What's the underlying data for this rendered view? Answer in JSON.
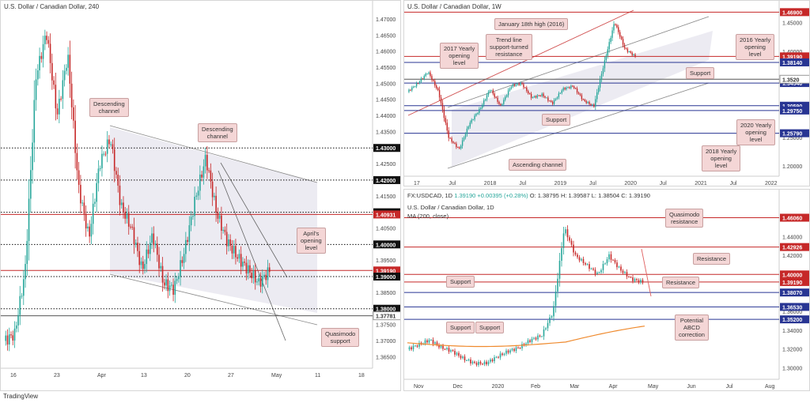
{
  "brand": "TradingView",
  "chart_data": [
    {
      "id": "h4",
      "type": "candlestick",
      "title": "U.S. Dollar / Canadian Dollar, 240",
      "x_ticks": [
        "16",
        "23",
        "Apr",
        "13",
        "20",
        "27",
        "May",
        "11",
        "18"
      ],
      "y_ticks": [
        "1.47000",
        "1.46500",
        "1.46000",
        "1.45500",
        "1.45000",
        "1.44500",
        "1.44000",
        "1.43500",
        "1.43000",
        "1.42500",
        "1.42000",
        "1.41500",
        "1.41000",
        "1.40500",
        "1.40000",
        "1.39500",
        "1.39000",
        "1.38500",
        "1.38000",
        "1.37500",
        "1.37000",
        "1.36500"
      ],
      "ylim": [
        1.3615,
        1.4733
      ],
      "levels": [
        {
          "value": "1.43000",
          "style": "dotted",
          "tag": "black"
        },
        {
          "value": "1.42000",
          "style": "dotted",
          "tag": "black"
        },
        {
          "value": "1.41000",
          "style": "dotted",
          "tag": "black"
        },
        {
          "value": "1.40931",
          "style": "solid-red",
          "tag": "red"
        },
        {
          "value": "1.40000",
          "style": "dotted",
          "tag": "black"
        },
        {
          "value": "1.39190",
          "style": "solid-red",
          "tag": "red"
        },
        {
          "value": "1.39000",
          "style": "dotted",
          "tag": "black"
        },
        {
          "value": "1.38000",
          "style": "dotted",
          "tag": "black"
        },
        {
          "value": "1.37781",
          "style": "solid-black",
          "tag": "grey"
        }
      ],
      "annotations": [
        "Descending channel",
        "Descending channel",
        "April's opening level",
        "Quasimodo support"
      ]
    },
    {
      "id": "w1",
      "type": "candlestick",
      "title": "U.S. Dollar / Canadian Dollar, 1W",
      "x_ticks": [
        "17",
        "Jul",
        "2018",
        "Jul",
        "2019",
        "Jul",
        "2020",
        "Jul",
        "2021",
        "Jul",
        "2022"
      ],
      "y_ticks": [
        "1.45000",
        "1.40000",
        "1.35000",
        "1.30000",
        "1.25000",
        "1.20000"
      ],
      "ylim": [
        1.183,
        1.475
      ],
      "levels": [
        {
          "value": "1.46900",
          "style": "solid-red",
          "tag": "red"
        },
        {
          "value": "1.39190",
          "style": "solid-red",
          "tag": "red"
        },
        {
          "value": "1.38140",
          "style": "solid-blue",
          "tag": "blue"
        },
        {
          "value": "1.34540",
          "style": "solid-blue",
          "tag": "blue"
        },
        {
          "value": "1.30590",
          "style": "solid-blue",
          "tag": "blue"
        },
        {
          "value": "1.29750",
          "style": "solid-blue",
          "tag": "blue"
        },
        {
          "value": "1.25790",
          "style": "solid-blue",
          "tag": "blue"
        },
        {
          "value": "1.3520",
          "style": "solid-black",
          "tag": "grey"
        }
      ],
      "annotations": [
        "January 18th high (2016)",
        "Trend line support-turned resistance",
        "2017 Yearly opening level",
        "2016 Yearly opening level",
        "Support",
        "Support",
        "2020 Yearly opening level",
        "2018 Yearly opening level",
        "Ascending channel"
      ]
    },
    {
      "id": "d1",
      "type": "candlestick",
      "title": "U.S. Dollar / Canadian Dollar, 1D",
      "x_ticks": [
        "Nov",
        "Dec",
        "2020",
        "Feb",
        "Mar",
        "Apr",
        "May",
        "Jun",
        "Jul",
        "Aug"
      ],
      "y_ticks": [
        "1.46000",
        "1.44000",
        "1.42000",
        "1.40000",
        "1.38000",
        "1.36000",
        "1.34000",
        "1.32000",
        "1.30000"
      ],
      "ylim": [
        1.288,
        1.472
      ],
      "levels": [
        {
          "value": "1.46060",
          "style": "solid-red",
          "tag": "red"
        },
        {
          "value": "1.42926",
          "style": "solid-red",
          "tag": "red"
        },
        {
          "value": "1.40000",
          "style": "solid-red",
          "tag": "red"
        },
        {
          "value": "1.39190",
          "style": "solid-red",
          "tag": "red"
        },
        {
          "value": "1.38070",
          "style": "solid-blue",
          "tag": "blue"
        },
        {
          "value": "1.36530",
          "style": "solid-blue",
          "tag": "blue"
        },
        {
          "value": "1.35200",
          "style": "solid-blue",
          "tag": "blue"
        }
      ],
      "annotations": [
        "Quasimodo resistance",
        "Resistance",
        "Resistance",
        "Support",
        "Support",
        "Support",
        "Potential ABCD correction"
      ]
    }
  ],
  "w1_ohlc": {
    "symbol": "FX:USDCAD, 1D",
    "price": "1.39190",
    "change": "+0.00395 (+0.28%)",
    "o": "O: 1.38795",
    "h": "H: 1.39587",
    "l": "L: 1.38504",
    "c": "C: 1.39190"
  },
  "d1_ma": "MA (200, close)",
  "callouts": {
    "h4_desc1": "Descending\nchannel",
    "h4_desc2": "Descending\nchannel",
    "h4_april": "April's\nopening\nlevel",
    "h4_qm": "Quasimodo\nsupport",
    "w1_jan": "January 18th high (2016)",
    "w1_trend": "Trend line\nsupport-turned\nresistance",
    "w1_2017": "2017 Yearly\nopening\nlevel",
    "w1_2016": "2016 Yearly\nopening\nlevel",
    "w1_sup1": "Support",
    "w1_sup2": "Support",
    "w1_2020": "2020 Yearly\nopening\nlevel",
    "w1_2018": "2018 Yearly\nopening\nlevel",
    "w1_asc": "Ascending channel",
    "d1_qm": "Quasimodo\nresistance",
    "d1_res1": "Resistance",
    "d1_res2": "Resistance",
    "d1_sup1": "Support",
    "d1_sup2": "Support",
    "d1_sup3": "Support",
    "d1_abcd": "Potential\nABCD\ncorrection"
  }
}
